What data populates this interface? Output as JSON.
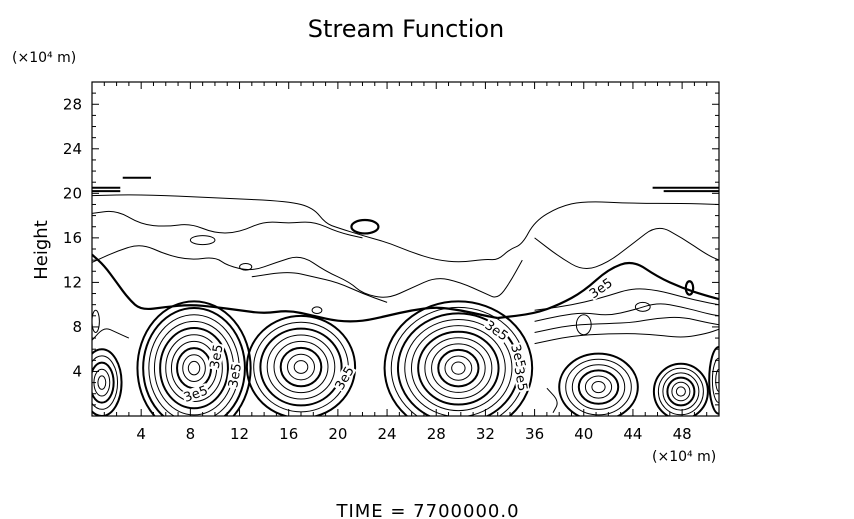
{
  "chart_data": {
    "type": "contour",
    "title": "Stream Function",
    "ylabel": "Height",
    "xunit": "(×10⁴ m)",
    "yunit": "(×10⁴ m)",
    "xlim": [
      0,
      51
    ],
    "ylim": [
      0,
      30
    ],
    "xticks": [
      4,
      8,
      12,
      16,
      20,
      24,
      28,
      32,
      36,
      40,
      44,
      48
    ],
    "yticks": [
      4,
      8,
      12,
      16,
      20,
      24,
      28
    ],
    "grid": false,
    "footer": "TIME  =  7700000.0",
    "contour_labels": [
      {
        "text": "3e5",
        "x": 8.5,
        "y": 1.8,
        "rot": -20
      },
      {
        "text": "3e5",
        "x": 10.3,
        "y": 5.3,
        "rot": -80
      },
      {
        "text": "3e5",
        "x": 11.8,
        "y": 3.6,
        "rot": -80
      },
      {
        "text": "3e5",
        "x": 20.7,
        "y": 3.3,
        "rot": -60
      },
      {
        "text": "3e5",
        "x": 32.8,
        "y": 7.5,
        "rot": 35
      },
      {
        "text": "3e5",
        "x": 34.5,
        "y": 5.3,
        "rot": 75
      },
      {
        "text": "3e5",
        "x": 34.7,
        "y": 3.3,
        "rot": 80
      },
      {
        "text": "3e5",
        "x": 41.5,
        "y": 11.3,
        "rot": -35
      }
    ],
    "vortices": [
      {
        "cx": 0.8,
        "cy": 3.0,
        "rx": 1.6,
        "ry": 3.0,
        "n": 5
      },
      {
        "cx": 8.3,
        "cy": 4.3,
        "rx": 4.6,
        "ry": 6.0,
        "n": 10
      },
      {
        "cx": 17.0,
        "cy": 4.4,
        "rx": 4.4,
        "ry": 4.6,
        "n": 8
      },
      {
        "cx": 29.8,
        "cy": 4.3,
        "rx": 6.0,
        "ry": 6.0,
        "n": 11
      },
      {
        "cx": 41.2,
        "cy": 2.6,
        "rx": 3.2,
        "ry": 3.0,
        "n": 6
      },
      {
        "cx": 47.9,
        "cy": 2.2,
        "rx": 2.2,
        "ry": 2.5,
        "n": 6
      },
      {
        "cx": 51.0,
        "cy": 3.2,
        "rx": 0.8,
        "ry": 3.0,
        "n": 3
      }
    ],
    "contour_lines": [
      {
        "bold": false,
        "pts": [
          [
            0,
            19.8
          ],
          [
            4,
            19.9
          ],
          [
            10,
            19.6
          ],
          [
            16,
            19.3
          ],
          [
            18,
            18.7
          ],
          [
            19,
            17.3
          ],
          [
            20,
            16.9
          ],
          [
            22,
            16.2
          ],
          [
            24,
            15.6
          ],
          [
            26,
            14.7
          ],
          [
            28,
            14.0
          ],
          [
            30,
            13.8
          ],
          [
            32,
            14.1
          ],
          [
            33,
            14.0
          ],
          [
            34,
            15.0
          ],
          [
            35,
            15.4
          ],
          [
            36,
            17.5
          ],
          [
            38,
            18.8
          ],
          [
            40,
            19.3
          ],
          [
            44,
            19.1
          ],
          [
            48,
            19.1
          ],
          [
            51,
            19.0
          ]
        ]
      },
      {
        "bold": false,
        "pts": [
          [
            0,
            18.2
          ],
          [
            2,
            18.5
          ],
          [
            4,
            17.2
          ],
          [
            6,
            17.0
          ],
          [
            8,
            17.3
          ],
          [
            10,
            16.4
          ],
          [
            12,
            16.5
          ],
          [
            14,
            17.5
          ],
          [
            16,
            17.3
          ],
          [
            18,
            17.5
          ],
          [
            20,
            16.5
          ],
          [
            22,
            16.0
          ]
        ]
      },
      {
        "bold": false,
        "pts": [
          [
            0,
            13.8
          ],
          [
            2,
            14.8
          ],
          [
            4,
            15.5
          ],
          [
            6,
            14.5
          ],
          [
            8,
            14.0
          ],
          [
            10,
            14.3
          ],
          [
            11,
            13.5
          ],
          [
            13,
            13.0
          ],
          [
            15,
            13.8
          ],
          [
            17,
            14.5
          ],
          [
            19,
            13.0
          ],
          [
            21,
            12.0
          ],
          [
            22,
            11.0
          ],
          [
            24,
            10.5
          ],
          [
            26,
            11.5
          ],
          [
            28,
            12.5
          ],
          [
            30,
            12.0
          ],
          [
            32,
            11.0
          ],
          [
            33,
            10.5
          ],
          [
            34,
            12.0
          ],
          [
            35,
            14.0
          ]
        ]
      },
      {
        "bold": false,
        "pts": [
          [
            13,
            12.5
          ],
          [
            16,
            13.0
          ],
          [
            18,
            12.5
          ],
          [
            20,
            12.0
          ],
          [
            22,
            11.0
          ],
          [
            24,
            10.2
          ]
        ]
      },
      {
        "bold": false,
        "pts": [
          [
            36,
            16.0
          ],
          [
            38,
            14.3
          ],
          [
            40,
            13.0
          ],
          [
            42,
            13.8
          ],
          [
            44,
            15.5
          ],
          [
            46,
            17.2
          ],
          [
            48,
            16.0
          ],
          [
            50,
            14.5
          ],
          [
            51,
            14.0
          ]
        ]
      },
      {
        "bold": true,
        "pts": [
          [
            0,
            14.5
          ],
          [
            1,
            13.5
          ],
          [
            2,
            12.0
          ],
          [
            3,
            10.5
          ],
          [
            4,
            9.5
          ],
          [
            6,
            9.8
          ],
          [
            8,
            10.0
          ],
          [
            10,
            9.8
          ],
          [
            12,
            9.5
          ],
          [
            14,
            9.2
          ],
          [
            16,
            9.5
          ],
          [
            18,
            9.0
          ],
          [
            20,
            8.5
          ],
          [
            22,
            8.5
          ],
          [
            24,
            9.0
          ],
          [
            26,
            9.5
          ],
          [
            28,
            9.8
          ],
          [
            30,
            9.5
          ],
          [
            32,
            9.0
          ],
          [
            33,
            8.8
          ]
        ]
      },
      {
        "bold": true,
        "pts": [
          [
            33,
            8.8
          ],
          [
            36,
            9.2
          ],
          [
            38,
            10.0
          ],
          [
            40,
            11.2
          ],
          [
            42,
            13.2
          ],
          [
            44,
            14.0
          ],
          [
            46,
            12.5
          ],
          [
            48,
            11.5
          ],
          [
            50,
            10.8
          ],
          [
            51,
            10.5
          ]
        ]
      },
      {
        "bold": false,
        "pts": [
          [
            36,
            9.5
          ],
          [
            38,
            9.8
          ],
          [
            40,
            10.2
          ],
          [
            42,
            10.8
          ],
          [
            44,
            11.5
          ],
          [
            46,
            11.3
          ],
          [
            48,
            10.7
          ],
          [
            50,
            10.2
          ],
          [
            51,
            10.0
          ]
        ]
      },
      {
        "bold": false,
        "pts": [
          [
            36,
            8.5
          ],
          [
            38,
            9.0
          ],
          [
            40,
            9.3
          ],
          [
            42,
            9.0
          ],
          [
            44,
            9.5
          ],
          [
            46,
            10.2
          ],
          [
            48,
            9.8
          ],
          [
            50,
            9.2
          ],
          [
            51,
            9.0
          ]
        ]
      },
      {
        "bold": false,
        "pts": [
          [
            36,
            7.5
          ],
          [
            39,
            8.2
          ],
          [
            42,
            8.3
          ],
          [
            44,
            8.4
          ],
          [
            46,
            8.8
          ],
          [
            48,
            8.9
          ],
          [
            50,
            8.4
          ],
          [
            51,
            8.2
          ]
        ]
      },
      {
        "bold": false,
        "pts": [
          [
            36,
            6.5
          ],
          [
            39,
            7.2
          ],
          [
            42,
            7.4
          ],
          [
            45,
            7.4
          ],
          [
            48,
            7.0
          ],
          [
            50,
            7.4
          ],
          [
            51,
            7.8
          ]
        ]
      },
      {
        "bold": false,
        "pts": [
          [
            0,
            6.8
          ],
          [
            1,
            8.0
          ],
          [
            2,
            7.5
          ],
          [
            3,
            7.0
          ]
        ]
      },
      {
        "bold": false,
        "pts": [
          [
            37,
            2.5
          ],
          [
            38,
            1.3
          ],
          [
            37.5,
            0.3
          ]
        ]
      }
    ],
    "small_loops": [
      {
        "cx": 22.2,
        "cy": 17.0,
        "rx": 1.1,
        "ry": 0.6,
        "bold": true
      },
      {
        "cx": 9.0,
        "cy": 15.8,
        "rx": 1.0,
        "ry": 0.4,
        "bold": false
      },
      {
        "cx": 12.5,
        "cy": 13.4,
        "rx": 0.5,
        "ry": 0.3,
        "bold": false
      },
      {
        "cx": 40.0,
        "cy": 8.2,
        "rx": 0.6,
        "ry": 0.9,
        "bold": false
      },
      {
        "cx": 48.6,
        "cy": 11.5,
        "rx": 0.3,
        "ry": 0.6,
        "bold": true
      },
      {
        "cx": 44.8,
        "cy": 9.8,
        "rx": 0.6,
        "ry": 0.4,
        "bold": false
      },
      {
        "cx": 0.3,
        "cy": 8.5,
        "rx": 0.3,
        "ry": 1.0,
        "bold": false
      },
      {
        "cx": 18.3,
        "cy": 9.5,
        "rx": 0.4,
        "ry": 0.3,
        "bold": false
      }
    ],
    "top_segments": [
      {
        "x1": 0.0,
        "x2": 2.3,
        "y": 20.5
      },
      {
        "x1": 0.0,
        "x2": 2.3,
        "y": 20.2
      },
      {
        "x1": 2.5,
        "x2": 4.8,
        "y": 21.4
      },
      {
        "x1": 45.6,
        "x2": 51.0,
        "y": 20.5
      },
      {
        "x1": 46.5,
        "x2": 51.0,
        "y": 20.2
      }
    ]
  }
}
